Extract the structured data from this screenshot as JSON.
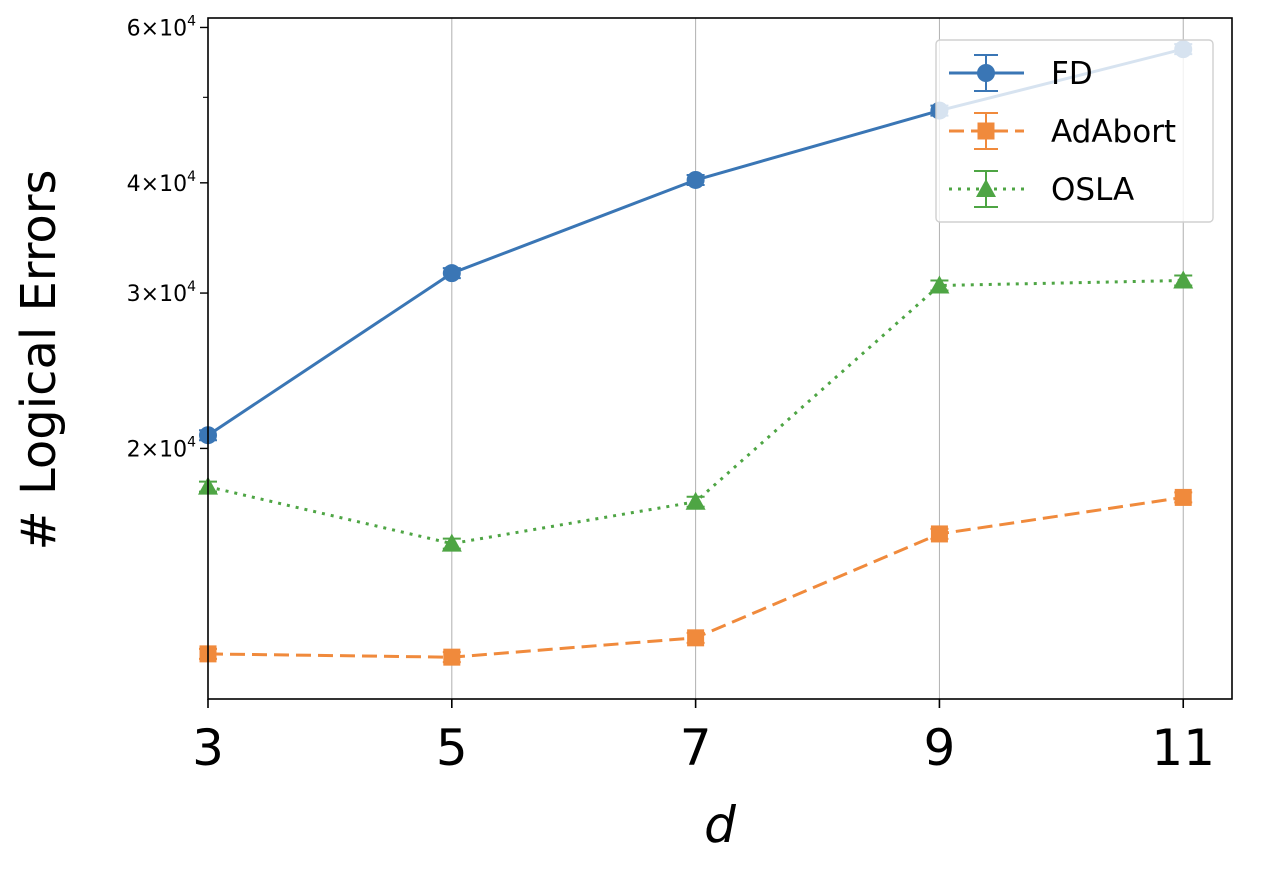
{
  "chart_data": {
    "type": "line",
    "xlabel": "d",
    "ylabel": "# Logical Errors",
    "x": [
      3,
      5,
      7,
      9,
      11
    ],
    "xlim": [
      3,
      11.4
    ],
    "ylim": [
      10400,
      61500
    ],
    "yscale": "log",
    "grid": "vertical",
    "legend_position": "top-right",
    "yticks": [
      {
        "value": 20000,
        "mantissa": "2",
        "base": "10",
        "exponent": "4"
      },
      {
        "value": 30000,
        "mantissa": "3",
        "base": "10",
        "exponent": "4"
      },
      {
        "value": 40000,
        "mantissa": "4",
        "base": "10",
        "exponent": "4"
      },
      {
        "value": 60000,
        "mantissa": "6",
        "base": "10",
        "exponent": "4"
      }
    ],
    "series": [
      {
        "name": "FD",
        "values": [
          20700,
          31600,
          40300,
          48300,
          56700
        ],
        "color": "#3a76b5",
        "line_style": "solid",
        "marker": "circle"
      },
      {
        "name": "AdAbort",
        "values": [
          11700,
          11600,
          12200,
          16000,
          17600
        ],
        "color": "#f08a3c",
        "line_style": "dashed",
        "marker": "square"
      },
      {
        "name": "OSLA",
        "values": [
          18100,
          15600,
          17400,
          30600,
          31000
        ],
        "color": "#4ea544",
        "line_style": "dotted",
        "marker": "triangle"
      }
    ]
  }
}
